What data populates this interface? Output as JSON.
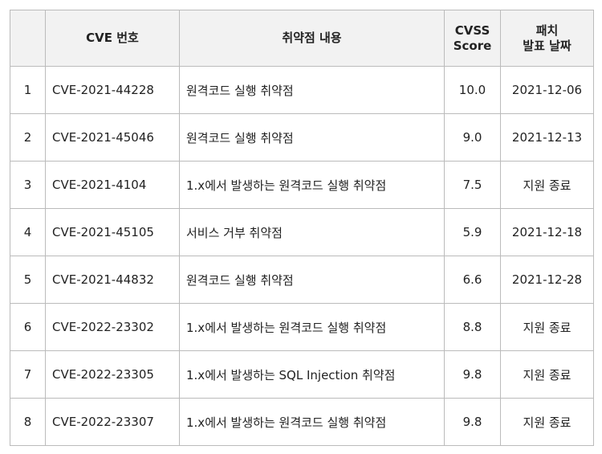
{
  "table": {
    "header": {
      "cve": "CVE 번호",
      "desc": "취약점 내용",
      "cvss": [
        "CVSS",
        "Score"
      ],
      "patch": [
        "패치",
        "발표 날짜"
      ]
    },
    "rows": [
      [
        1,
        "CVE-2021-44228",
        "원격코드 실행 취약점",
        "10.0",
        "2021-12-06"
      ],
      [
        2,
        "CVE-2021-45046",
        "원격코드 실행 취약점",
        "9.0",
        "2021-12-13"
      ],
      [
        3,
        "CVE-2021-4104",
        "1.x에서 발생하는 원격코드 실행 취약점",
        "7.5",
        "지원 종료"
      ],
      [
        4,
        "CVE-2021-45105",
        "서비스 거부 취약점",
        "5.9",
        "2021-12-18"
      ],
      [
        5,
        "CVE-2021-44832",
        "원격코드 실행 취약점",
        "6.6",
        "2021-12-28"
      ],
      [
        6,
        "CVE-2022-23302",
        "1.x에서 발생하는 원격코드 실행 취약점",
        "8.8",
        "지원 종료"
      ],
      [
        7,
        "CVE-2022-23305",
        "1.x에서 발생하는 SQL Injection 취약점",
        "9.8",
        "지원 종료"
      ],
      [
        8,
        "CVE-2022-23307",
        "1.x에서 발생하는 원격코드 실행 취약점",
        "9.8",
        "지원 종료"
      ]
    ]
  }
}
